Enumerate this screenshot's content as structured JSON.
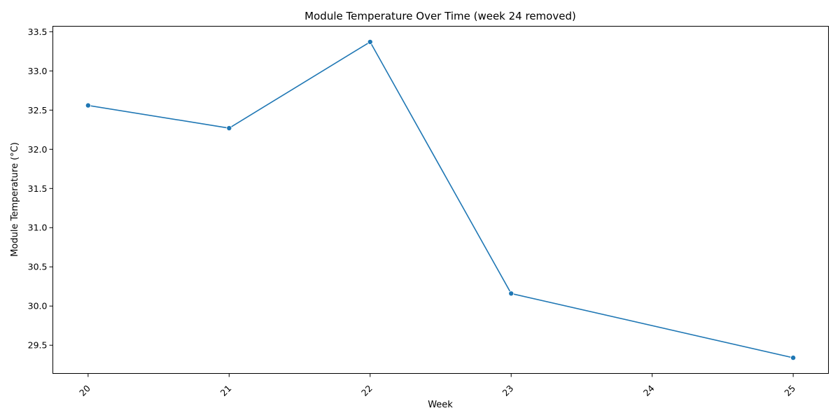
{
  "chart_data": {
    "type": "line",
    "title": "Module Temperature Over Time (week 24 removed)",
    "xlabel": "Week",
    "ylabel": "Module Temperature (°C)",
    "x": [
      20,
      21,
      22,
      23,
      25
    ],
    "series": [
      {
        "values": [
          32.56,
          32.27,
          33.37,
          30.16,
          29.34
        ],
        "color": "#1f77b4"
      }
    ],
    "xticks": [
      "20",
      "21",
      "22",
      "23",
      "24",
      "25"
    ],
    "yticks": [
      "29.5",
      "30.0",
      "30.5",
      "31.0",
      "31.5",
      "32.0",
      "32.5",
      "33.0",
      "33.5"
    ],
    "xlim": [
      19.75,
      25.25
    ],
    "ylim": [
      29.14,
      33.57
    ],
    "grid": false,
    "legend": "none",
    "xtick_rotation": "45°",
    "markers": "circle"
  }
}
